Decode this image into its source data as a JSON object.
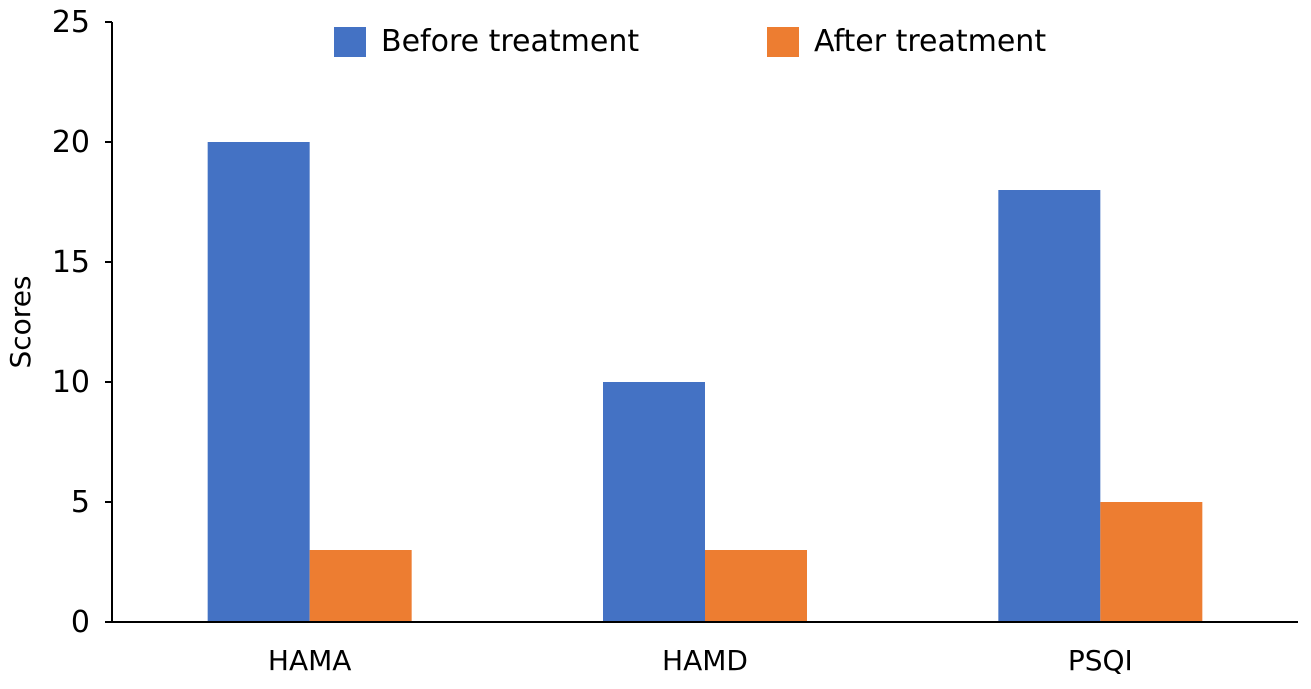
{
  "chart_data": {
    "type": "bar",
    "categories": [
      "HAMA",
      "HAMD",
      "PSQI"
    ],
    "series": [
      {
        "name": "Before treatment",
        "values": [
          20,
          10,
          18
        ],
        "color": "#4472C4"
      },
      {
        "name": "After treatment",
        "values": [
          3,
          3,
          5
        ],
        "color": "#ED7D31"
      }
    ],
    "xlabel": "",
    "ylabel": "Scores",
    "ylim": [
      0,
      25
    ],
    "yticks": [
      0,
      5,
      10,
      15,
      20,
      25
    ],
    "grid": false,
    "legend_position": "top"
  }
}
